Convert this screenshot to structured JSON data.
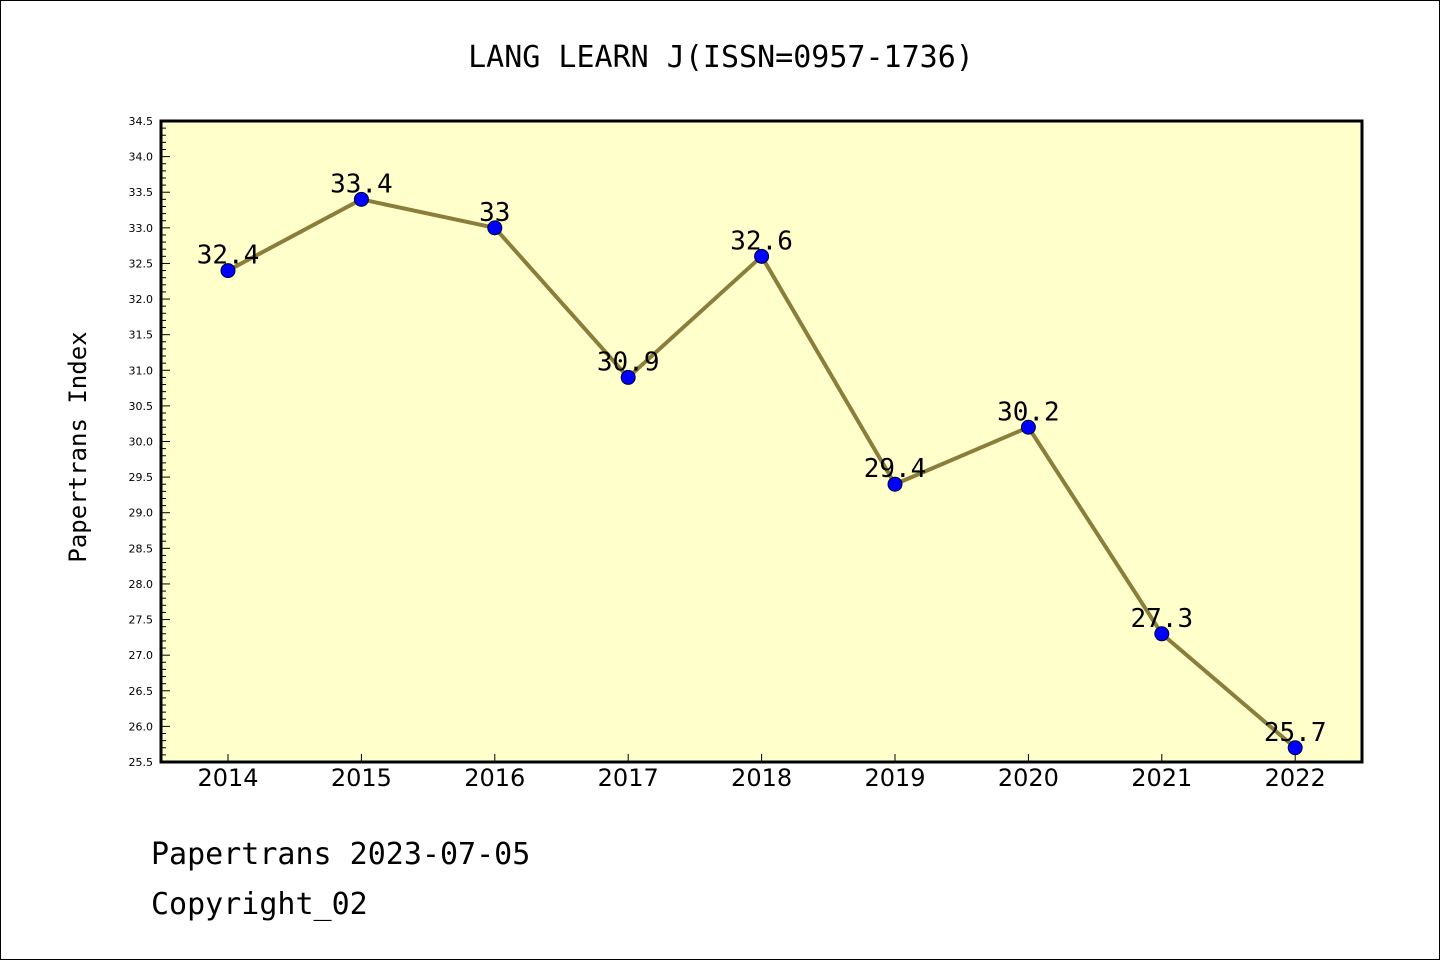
{
  "colors": {
    "plot_background": "#ffffcc",
    "line": "#8b7d3a",
    "marker": "#0000ff",
    "axis": "#000000"
  },
  "footer": {
    "date_text": "Papertrans 2023-07-05",
    "copyright_text": "Copyright_02"
  },
  "chart_data": {
    "type": "line",
    "title": "LANG LEARN J(ISSN=0957-1736)",
    "xlabel": "",
    "ylabel": "Papertrans Index",
    "categories": [
      "2014",
      "2015",
      "2016",
      "2017",
      "2018",
      "2019",
      "2020",
      "2021",
      "2022"
    ],
    "series": [
      {
        "values": [
          32.4,
          33.4,
          33.0,
          30.9,
          32.6,
          29.4,
          30.2,
          27.3,
          25.7
        ],
        "data_labels": [
          "32.4",
          "33.4",
          "33",
          "30.9",
          "32.6",
          "29.4",
          "30.2",
          "27.3",
          "25.7"
        ]
      }
    ],
    "ylim": [
      25.5,
      34.5
    ],
    "yticks": [
      "25.5",
      "26.0",
      "26.5",
      "27.0",
      "27.5",
      "28.0",
      "28.5",
      "29.0",
      "29.5",
      "30.0",
      "30.5",
      "31.0",
      "31.5",
      "32.0",
      "32.5",
      "33.0",
      "33.5",
      "34.0",
      "34.5"
    ],
    "grid": false,
    "marker": "circle"
  }
}
